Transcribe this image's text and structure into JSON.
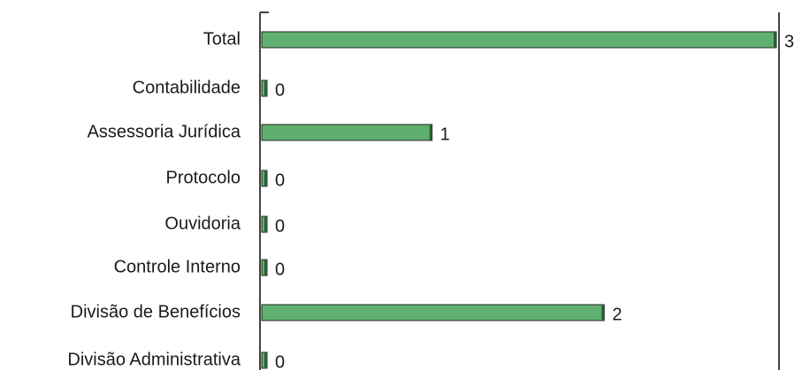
{
  "chart_data": {
    "type": "bar",
    "orientation": "horizontal",
    "categories": [
      "Total",
      "Contabilidade",
      "Assessoria Jurídica",
      "Protocolo",
      "Ouvidoria",
      "Controle Interno",
      "Divisão de Benefícios",
      "Divisão Administrativa"
    ],
    "values": [
      3,
      0,
      1,
      0,
      0,
      0,
      2,
      0
    ],
    "xlim": [
      0,
      3
    ],
    "colors": {
      "bar": "#5fb070",
      "bar_edge": "#222222"
    }
  }
}
